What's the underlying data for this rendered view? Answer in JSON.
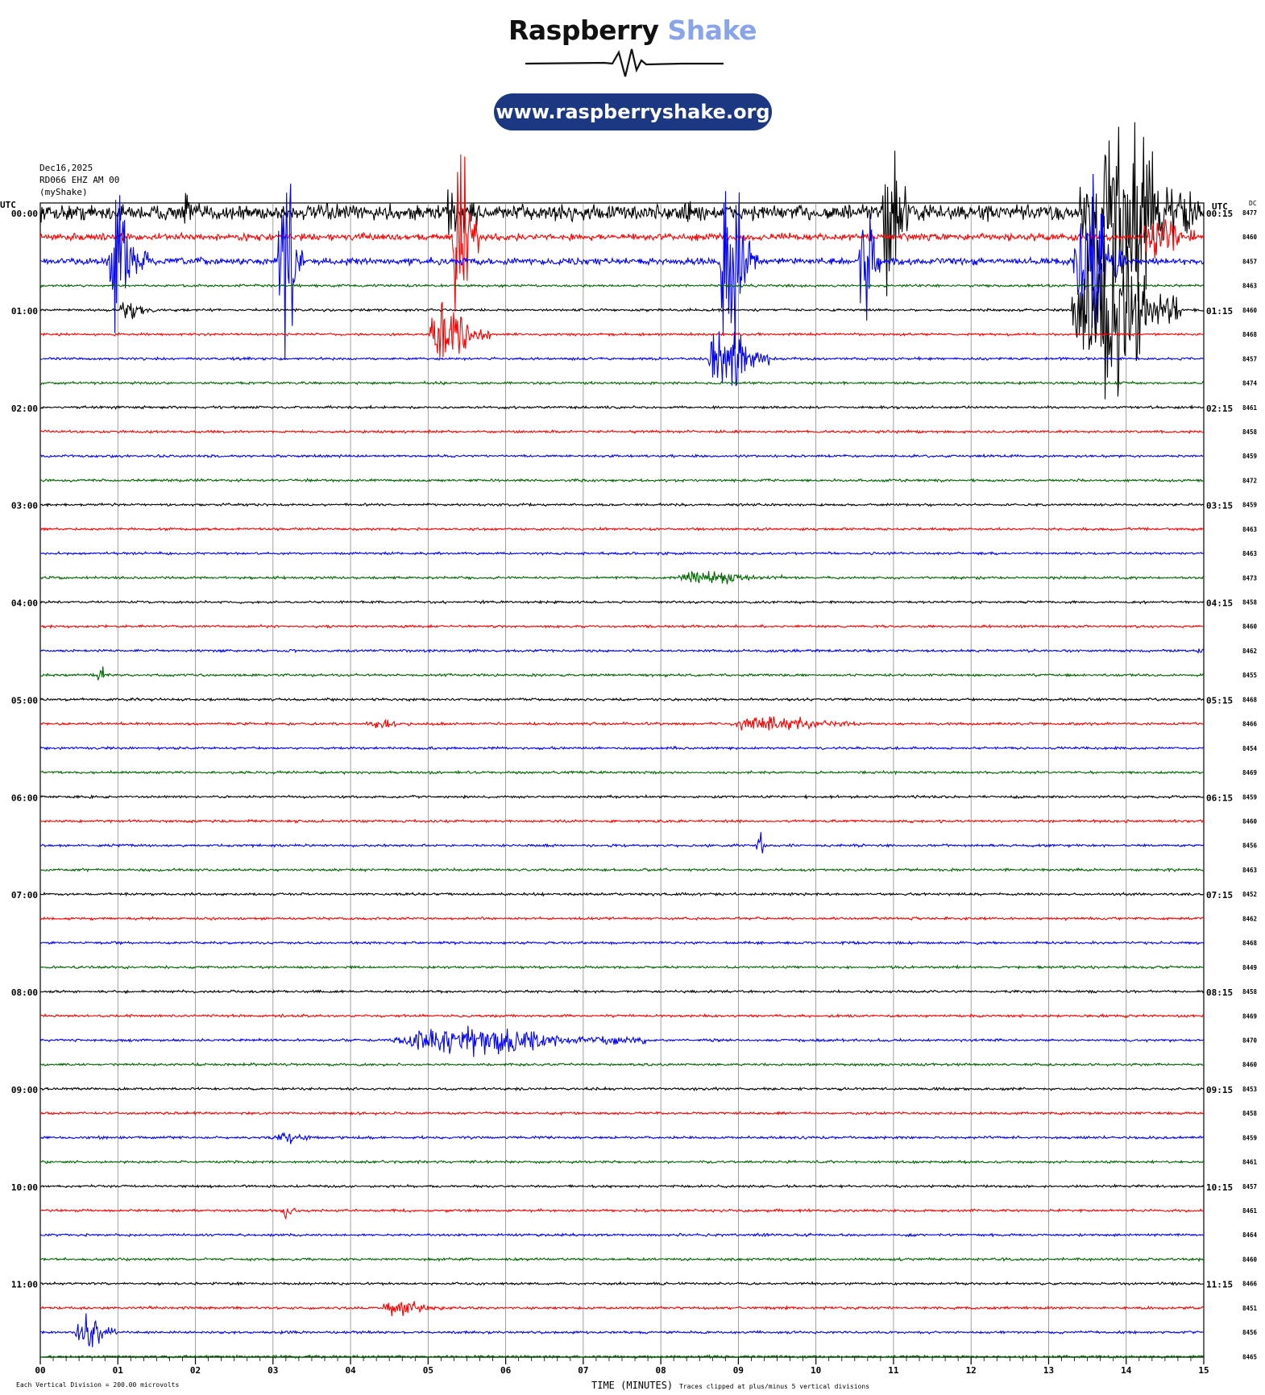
{
  "branding": {
    "title_part1": "Raspberry",
    "title_part2": "Shake",
    "url": "www.raspberryshake.org"
  },
  "header": {
    "date": "Dec16,2025",
    "station": "RD066 EHZ AM 00",
    "owner": "(myShake)",
    "left_tz": "UTC",
    "right_tz": "UTC",
    "dc_label": "DC"
  },
  "footer": {
    "vertical_division": "Each Vertical Division =  200.00 microvolts",
    "xlabel": "TIME (MINUTES)",
    "clip_note": "Traces clipped at plus/minus 5 vertical divisions"
  },
  "chart_data": {
    "type": "line",
    "xlabel": "TIME (MINUTES)",
    "xlim": [
      0,
      15
    ],
    "x_ticks": [
      "00",
      "01",
      "02",
      "03",
      "04",
      "05",
      "06",
      "07",
      "08",
      "09",
      "10",
      "11",
      "12",
      "13",
      "14",
      "15"
    ],
    "colors": [
      "#000000",
      "#ff0000",
      "#0000ff",
      "#006400"
    ],
    "left_labels": [
      "00:00",
      "01:00",
      "02:00",
      "03:00",
      "04:00",
      "05:00",
      "06:00",
      "07:00",
      "08:00",
      "09:00",
      "10:00",
      "11:00"
    ],
    "right_labels": [
      "00:15",
      "01:15",
      "02:15",
      "03:15",
      "04:15",
      "05:15",
      "06:15",
      "07:15",
      "08:15",
      "09:15",
      "10:15",
      "11:15"
    ],
    "dc_values": [
      "8477",
      "8460",
      "8457",
      "8463",
      "8460",
      "8468",
      "8457",
      "8474",
      "8461",
      "8458",
      "8459",
      "8472",
      "8459",
      "8463",
      "8463",
      "8473",
      "8458",
      "8460",
      "8462",
      "8455",
      "8468",
      "8466",
      "8454",
      "8469",
      "8459",
      "8460",
      "8456",
      "8463",
      "8452",
      "8462",
      "8468",
      "8449",
      "8458",
      "8469",
      "8470",
      "8460",
      "8453",
      "8458",
      "8459",
      "8461",
      "8457",
      "8461",
      "8464",
      "8460",
      "8466",
      "8451",
      "8456",
      "8465"
    ],
    "events": [
      {
        "row": 0,
        "start": 8.2,
        "end": 8.55,
        "amp": 0.5
      },
      {
        "row": 0,
        "start": 10.85,
        "end": 11.2,
        "amp": 6.5
      },
      {
        "row": 0,
        "start": 13.4,
        "end": 14.95,
        "amp": 6.5
      },
      {
        "row": 0,
        "start": 5.2,
        "end": 5.65,
        "amp": 1.5
      },
      {
        "row": 0,
        "start": 1.85,
        "end": 2.0,
        "amp": 1.2
      },
      {
        "row": 1,
        "start": 5.3,
        "end": 5.65,
        "amp": 6.5
      },
      {
        "row": 1,
        "start": 14.2,
        "end": 14.9,
        "amp": 1.2
      },
      {
        "row": 2,
        "start": 0.85,
        "end": 1.4,
        "amp": 4.5
      },
      {
        "row": 2,
        "start": 3.05,
        "end": 3.4,
        "amp": 5.5
      },
      {
        "row": 2,
        "start": 8.75,
        "end": 9.25,
        "amp": 6.5
      },
      {
        "row": 2,
        "start": 10.55,
        "end": 10.85,
        "amp": 5.0
      },
      {
        "row": 2,
        "start": 13.3,
        "end": 14.0,
        "amp": 5.5
      },
      {
        "row": 4,
        "start": 1.0,
        "end": 1.5,
        "amp": 0.6
      },
      {
        "row": 4,
        "start": 13.3,
        "end": 14.7,
        "amp": 6.0
      },
      {
        "row": 5,
        "start": 5.0,
        "end": 5.8,
        "amp": 2.0
      },
      {
        "row": 6,
        "start": 8.6,
        "end": 9.4,
        "amp": 2.5
      },
      {
        "row": 21,
        "start": 8.9,
        "end": 10.6,
        "amp": 0.5
      },
      {
        "row": 21,
        "start": 4.2,
        "end": 4.8,
        "amp": 0.3
      },
      {
        "row": 34,
        "start": 4.55,
        "end": 7.8,
        "amp": 0.9
      },
      {
        "row": 38,
        "start": 3.0,
        "end": 3.6,
        "amp": 0.3
      },
      {
        "row": 41,
        "start": 3.1,
        "end": 3.3,
        "amp": 0.4
      },
      {
        "row": 45,
        "start": 4.4,
        "end": 5.2,
        "amp": 0.5
      },
      {
        "row": 46,
        "start": 0.45,
        "end": 1.0,
        "amp": 1.2
      },
      {
        "row": 15,
        "start": 8.2,
        "end": 9.6,
        "amp": 0.4
      }
    ],
    "spikes": [
      {
        "row": 19,
        "x": 0.78,
        "amp": 1.0
      },
      {
        "row": 26,
        "x": 9.28,
        "amp": 1.2
      },
      {
        "row": 18,
        "x": 14.95,
        "amp": 0.3
      }
    ]
  }
}
